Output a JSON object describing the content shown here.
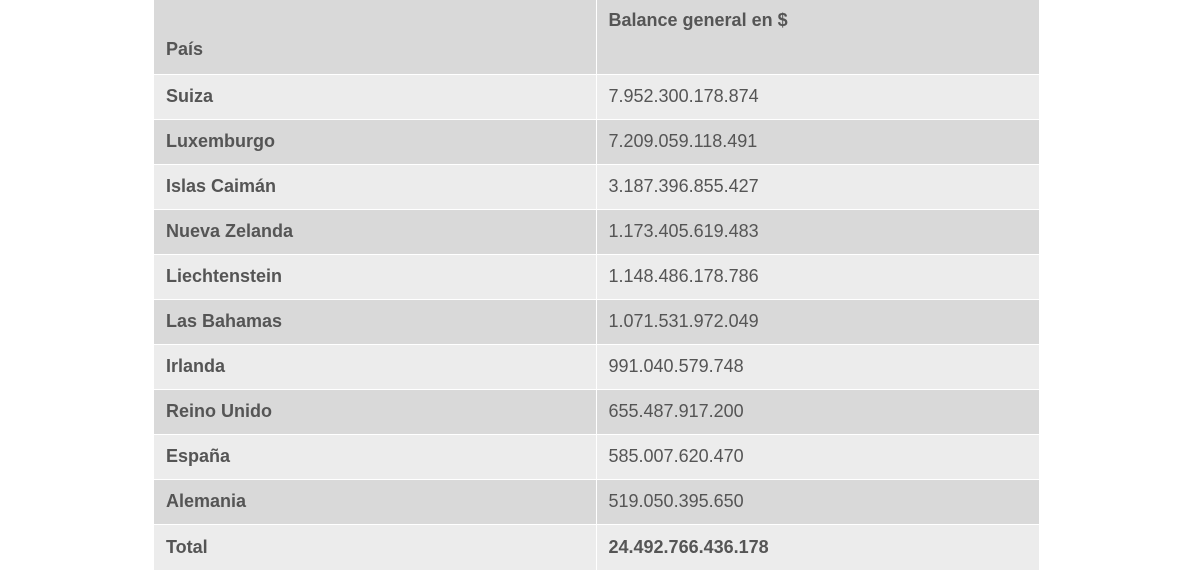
{
  "table": {
    "headers": {
      "country": "País",
      "balance": "Balance general en $"
    },
    "rows": [
      {
        "country": "Suiza",
        "value": "7.952.300.178.874"
      },
      {
        "country": "Luxemburgo",
        "value": "7.209.059.118.491"
      },
      {
        "country": "Islas Caimán",
        "value": "3.187.396.855.427"
      },
      {
        "country": "Nueva Zelanda",
        "value": "1.173.405.619.483"
      },
      {
        "country": "Liechtenstein",
        "value": "1.148.486.178.786"
      },
      {
        "country": "Las Bahamas",
        "value": "1.071.531.972.049"
      },
      {
        "country": "Irlanda",
        "value": "991.040.579.748"
      },
      {
        "country": "Reino Unido",
        "value": "655.487.917.200"
      },
      {
        "country": "España",
        "value": "585.007.620.470"
      },
      {
        "country": "Alemania",
        "value": "519.050.395.650"
      }
    ],
    "total": {
      "label": "Total",
      "value": "24.492.766.436.178"
    }
  }
}
